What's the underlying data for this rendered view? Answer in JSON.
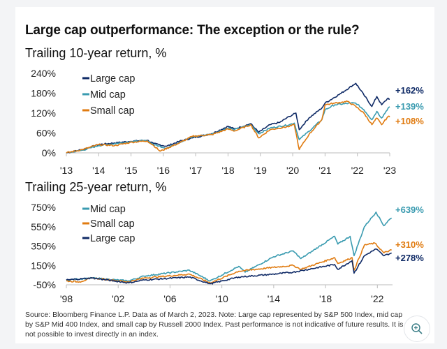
{
  "title": "Large cap outperformance: The exception or the rule?",
  "source": "Source: Bloomberg Finance L.P. Data as of March 2, 2023. Note: Large cap represented by S&P 500 Index, mid cap by S&P Mid 400 Index, and small cap by Russell 2000 Index. Past performance is not indicative of future results. It is not possible to invest directly in an index.",
  "zoom_icon": "zoom-in-icon",
  "colors": {
    "large": "#0f2a66",
    "mid": "#3a9bb0",
    "small": "#e07b10"
  },
  "chart_data": [
    {
      "type": "line",
      "title": "Trailing 10-year return, %",
      "ylim": [
        0,
        240
      ],
      "yticks": [
        "0%",
        "60%",
        "120%",
        "180%",
        "240%"
      ],
      "ytick_values": [
        0,
        60,
        120,
        180,
        240
      ],
      "xlim": [
        2013,
        2023
      ],
      "xticks": [
        "'13",
        "'14",
        "'15",
        "'16",
        "'17",
        "'18",
        "'19",
        "'20",
        "'21",
        "'22",
        "'23"
      ],
      "xtick_values": [
        2013,
        2014,
        2015,
        2016,
        2017,
        2018,
        2019,
        2020,
        2021,
        2022,
        2023
      ],
      "grid": false,
      "legend": "top-left",
      "series": [
        {
          "name": "Large cap",
          "key": "large",
          "end_label": "+162%",
          "points": [
            [
              2013,
              0
            ],
            [
              2013.5,
              10
            ],
            [
              2014,
              25
            ],
            [
              2014.5,
              30
            ],
            [
              2015,
              35
            ],
            [
              2015.5,
              38
            ],
            [
              2015.7,
              28
            ],
            [
              2016.1,
              20
            ],
            [
              2016.5,
              35
            ],
            [
              2016.9,
              45
            ],
            [
              2017.5,
              58
            ],
            [
              2018,
              80
            ],
            [
              2018.2,
              72
            ],
            [
              2018.7,
              88
            ],
            [
              2018.95,
              62
            ],
            [
              2019.3,
              85
            ],
            [
              2019.6,
              92
            ],
            [
              2019.9,
              110
            ],
            [
              2020.1,
              120
            ],
            [
              2020.2,
              70
            ],
            [
              2020.5,
              105
            ],
            [
              2020.9,
              135
            ],
            [
              2021,
              150
            ],
            [
              2021.5,
              180
            ],
            [
              2021.95,
              210
            ],
            [
              2022.2,
              175
            ],
            [
              2022.45,
              140
            ],
            [
              2022.6,
              170
            ],
            [
              2022.75,
              145
            ],
            [
              2022.95,
              165
            ],
            [
              2023,
              162
            ]
          ]
        },
        {
          "name": "Mid cap",
          "key": "mid",
          "end_label": "+139%",
          "points": [
            [
              2013,
              0
            ],
            [
              2013.5,
              8
            ],
            [
              2014,
              22
            ],
            [
              2014.5,
              28
            ],
            [
              2015,
              34
            ],
            [
              2015.5,
              37
            ],
            [
              2015.7,
              25
            ],
            [
              2016.1,
              14
            ],
            [
              2016.5,
              32
            ],
            [
              2016.9,
              48
            ],
            [
              2017.5,
              57
            ],
            [
              2018,
              75
            ],
            [
              2018.2,
              70
            ],
            [
              2018.7,
              85
            ],
            [
              2018.95,
              58
            ],
            [
              2019.3,
              75
            ],
            [
              2019.9,
              85
            ],
            [
              2020.05,
              90
            ],
            [
              2020.2,
              40
            ],
            [
              2020.5,
              65
            ],
            [
              2020.9,
              100
            ],
            [
              2021,
              130
            ],
            [
              2021.3,
              145
            ],
            [
              2021.8,
              150
            ],
            [
              2021.95,
              150
            ],
            [
              2022.2,
              130
            ],
            [
              2022.45,
              100
            ],
            [
              2022.6,
              125
            ],
            [
              2022.75,
              105
            ],
            [
              2022.95,
              135
            ],
            [
              2023,
              139
            ]
          ]
        },
        {
          "name": "Small cap",
          "key": "small",
          "end_label": "+108%",
          "points": [
            [
              2013,
              0
            ],
            [
              2013.5,
              10
            ],
            [
              2014,
              25
            ],
            [
              2014.5,
              22
            ],
            [
              2015,
              32
            ],
            [
              2015.5,
              36
            ],
            [
              2015.7,
              22
            ],
            [
              2015.9,
              5
            ],
            [
              2016.5,
              30
            ],
            [
              2016.9,
              50
            ],
            [
              2017.5,
              55
            ],
            [
              2018,
              72
            ],
            [
              2018.2,
              66
            ],
            [
              2018.7,
              85
            ],
            [
              2018.95,
              45
            ],
            [
              2019.3,
              70
            ],
            [
              2019.9,
              80
            ],
            [
              2020.05,
              85
            ],
            [
              2020.2,
              10
            ],
            [
              2020.5,
              55
            ],
            [
              2020.9,
              100
            ],
            [
              2021,
              145
            ],
            [
              2021.3,
              150
            ],
            [
              2021.7,
              155
            ],
            [
              2021.95,
              140
            ],
            [
              2022.2,
              120
            ],
            [
              2022.45,
              85
            ],
            [
              2022.6,
              105
            ],
            [
              2022.75,
              85
            ],
            [
              2022.95,
              110
            ],
            [
              2023,
              108
            ]
          ]
        }
      ]
    },
    {
      "type": "line",
      "title": "Trailing 25-year return, %",
      "ylim": [
        -50,
        750
      ],
      "yticks": [
        "-50%",
        "150%",
        "350%",
        "550%",
        "750%"
      ],
      "ytick_values": [
        -50,
        150,
        350,
        550,
        750
      ],
      "xlim": [
        1998,
        2023.17
      ],
      "xticks": [
        "'98",
        "'02",
        "'06",
        "'10",
        "'14",
        "'18",
        "'22"
      ],
      "xtick_values": [
        1998,
        2002,
        2006,
        2010,
        2014,
        2018,
        2022
      ],
      "grid": false,
      "legend": "top-left",
      "series": [
        {
          "name": "Mid cap",
          "key": "mid",
          "end_label": "+639%",
          "points": [
            [
              1998,
              0
            ],
            [
              2000,
              20
            ],
            [
              2002.8,
              -10
            ],
            [
              2004,
              40
            ],
            [
              2007.5,
              100
            ],
            [
              2009.1,
              -10
            ],
            [
              2011.3,
              140
            ],
            [
              2011.8,
              80
            ],
            [
              2014,
              240
            ],
            [
              2015.5,
              300
            ],
            [
              2016.1,
              220
            ],
            [
              2018.7,
              450
            ],
            [
              2018.95,
              370
            ],
            [
              2019.9,
              450
            ],
            [
              2020.2,
              250
            ],
            [
              2021,
              550
            ],
            [
              2021.9,
              700
            ],
            [
              2022.5,
              560
            ],
            [
              2022.9,
              620
            ],
            [
              2023.1,
              639
            ]
          ]
        },
        {
          "name": "Small cap",
          "key": "small",
          "end_label": "+310%",
          "points": [
            [
              1998,
              -10
            ],
            [
              1999,
              -20
            ],
            [
              2000,
              20
            ],
            [
              2002.8,
              -20
            ],
            [
              2004,
              20
            ],
            [
              2007.5,
              60
            ],
            [
              2009.1,
              -30
            ],
            [
              2011.3,
              90
            ],
            [
              2014,
              130
            ],
            [
              2015.5,
              150
            ],
            [
              2016.1,
              110
            ],
            [
              2018.7,
              230
            ],
            [
              2018.95,
              170
            ],
            [
              2020.05,
              230
            ],
            [
              2020.2,
              100
            ],
            [
              2021,
              360
            ],
            [
              2021.8,
              380
            ],
            [
              2022.5,
              280
            ],
            [
              2023.1,
              310
            ]
          ]
        },
        {
          "name": "Large cap",
          "key": "large",
          "end_label": "+278%",
          "points": [
            [
              1998,
              0
            ],
            [
              2000,
              20
            ],
            [
              2002.8,
              -30
            ],
            [
              2004,
              0
            ],
            [
              2007.5,
              30
            ],
            [
              2009.1,
              -40
            ],
            [
              2011.3,
              30
            ],
            [
              2014,
              60
            ],
            [
              2015.5,
              80
            ],
            [
              2018.7,
              160
            ],
            [
              2018.95,
              110
            ],
            [
              2020.05,
              200
            ],
            [
              2020.2,
              70
            ],
            [
              2021,
              250
            ],
            [
              2021.9,
              320
            ],
            [
              2022.5,
              250
            ],
            [
              2023.1,
              278
            ]
          ]
        }
      ]
    }
  ]
}
